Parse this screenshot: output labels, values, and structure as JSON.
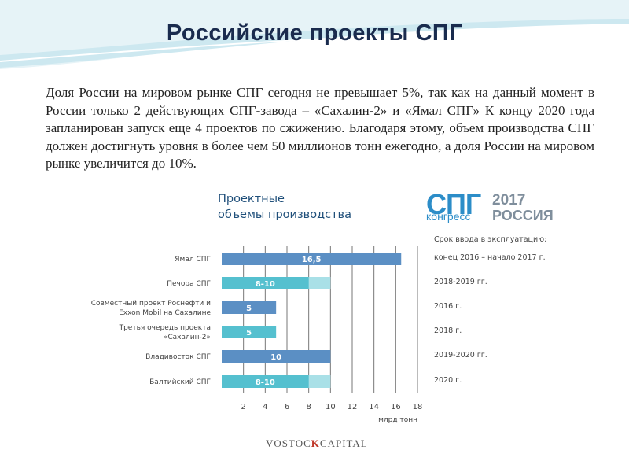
{
  "title": "Российские проекты СПГ",
  "paragraph": "Доля России на мировом рынке СПГ сегодня не превышает 5%, так как на данный момент в России только 2 действующих СПГ-завода – «Сахалин-2» и «Ямал СПГ» К концу 2020 года запланирован запуск еще 4 проектов по сжижению. Благодаря этому, объем производства СПГ должен достигнуть уровня в более чем 50 миллионов тонн ежегодно, а доля России на мировом рынке увеличится до 10%.",
  "chart_heading": {
    "line1": "Проектные",
    "line2": "объемы производства"
  },
  "logo": {
    "spg": "СПГ",
    "year": "2017",
    "congress": "конгресс",
    "russia": "РОССИЯ"
  },
  "commissioning": {
    "header": "Срок ввода в эксплуатацию:",
    "items": [
      "конец 2016 – начало 2017 г.",
      "2018-2019 гг.",
      "2016 г.",
      "2018 г.",
      "2019-2020 гг.",
      "2020 г."
    ]
  },
  "footer": {
    "left": "VOSTOC",
    "mark": "K",
    "right": "CAPITAL"
  },
  "colors": {
    "title": "#1a2b4e",
    "bar_dark": "#5b8fc4",
    "bar_teal": "#55c0cf",
    "bar_light": "#a9e0e7",
    "wave": "#cde8f0"
  },
  "chart_data": {
    "type": "bar",
    "orientation": "horizontal",
    "categories": [
      [
        "Ямал СПГ"
      ],
      [
        "Печора СПГ"
      ],
      [
        "Совместный проект Роснефти и",
        "Exxon Mobil на Сахалине"
      ],
      [
        "Третья очередь проекта",
        "«Сахалин-2»"
      ],
      [
        "Владивосток СПГ"
      ],
      [
        "Балтийский СПГ"
      ]
    ],
    "bars": [
      {
        "min": 16.5,
        "max": 16.5,
        "label": "16,5",
        "color": "#5b8fc4"
      },
      {
        "min": 8,
        "max": 10,
        "label": "8-10",
        "color": "#55c0cf"
      },
      {
        "min": 5,
        "max": 5,
        "label": "5",
        "color": "#5b8fc4"
      },
      {
        "min": 5,
        "max": 5,
        "label": "5",
        "color": "#55c0cf"
      },
      {
        "min": 10,
        "max": 10,
        "label": "10",
        "color": "#5b8fc4"
      },
      {
        "min": 8,
        "max": 10,
        "label": "8-10",
        "color": "#55c0cf"
      }
    ],
    "xticks": [
      2,
      4,
      6,
      8,
      10,
      12,
      14,
      16,
      18
    ],
    "xlim": [
      0,
      18
    ],
    "xlabel": "млрд тонн",
    "grid": "vertical"
  }
}
